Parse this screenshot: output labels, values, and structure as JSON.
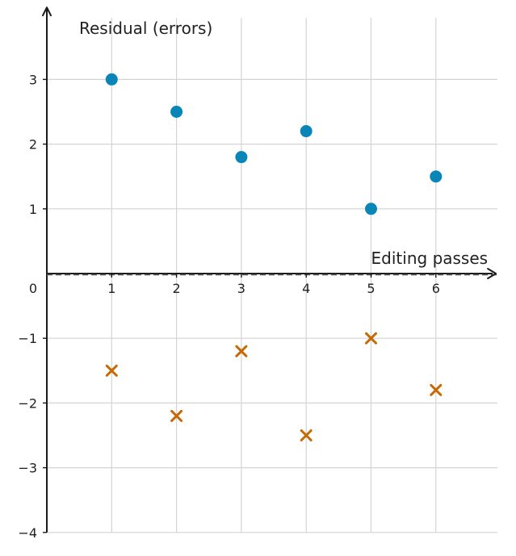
{
  "chart_data": {
    "type": "scatter",
    "xlabel": "Editing passes",
    "ylabel": "Residual (errors)",
    "xlim": [
      0,
      6.95
    ],
    "ylim": [
      -4,
      3.95
    ],
    "x_ticks": [
      1,
      2,
      3,
      4,
      5,
      6
    ],
    "y_ticks": [
      -4,
      -3,
      -2,
      -1,
      0,
      1,
      2,
      3
    ],
    "grid": true,
    "zero_reference_line": "dashed",
    "series": [
      {
        "marker": "circle",
        "color": "#0a85b8",
        "x": [
          1,
          2,
          3,
          4,
          5,
          6
        ],
        "y": [
          3,
          2.5,
          1.8,
          2.2,
          1,
          1.5
        ]
      },
      {
        "marker": "x",
        "color": "#c46a06",
        "x": [
          1,
          2,
          3,
          4,
          5,
          6
        ],
        "y": [
          -1.5,
          -2.2,
          -1.2,
          -2.5,
          -1,
          -1.8
        ]
      }
    ]
  }
}
